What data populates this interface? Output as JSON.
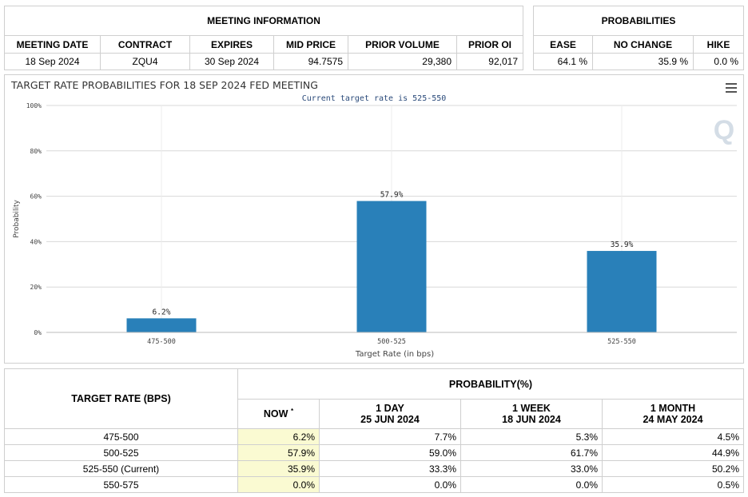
{
  "meeting_info": {
    "title": "MEETING INFORMATION",
    "columns": [
      "MEETING DATE",
      "CONTRACT",
      "EXPIRES",
      "MID PRICE",
      "PRIOR VOLUME",
      "PRIOR OI"
    ],
    "values": [
      "18 Sep 2024",
      "ZQU4",
      "30 Sep 2024",
      "94.7575",
      "29,380",
      "92,017"
    ]
  },
  "probabilities": {
    "title": "PROBABILITIES",
    "columns": [
      "EASE",
      "NO CHANGE",
      "HIKE"
    ],
    "values": [
      "64.1 %",
      "35.9 %",
      "0.0 %"
    ]
  },
  "chart_data": {
    "type": "bar",
    "title": "TARGET RATE PROBABILITIES FOR 18 SEP 2024 FED MEETING",
    "subtitle": "Current target rate is 525-550",
    "xlabel": "Target Rate (in bps)",
    "ylabel": "Probability",
    "categories": [
      "475-500",
      "500-525",
      "525-550"
    ],
    "values": [
      6.2,
      57.9,
      35.9
    ],
    "data_labels": [
      "6.2%",
      "57.9%",
      "35.9%"
    ],
    "ylim": [
      0,
      100
    ],
    "yticks": [
      0,
      20,
      40,
      60,
      80,
      100
    ],
    "ytick_labels": [
      "0%",
      "20%",
      "40%",
      "60%",
      "80%",
      "100%"
    ],
    "grid": true,
    "bar_color": "#2980b9",
    "watermark": "Q"
  },
  "rate_table": {
    "target_header": "TARGET RATE (BPS)",
    "prob_header": "PROBABILITY(%)",
    "col_headers": [
      {
        "line1": "NOW",
        "line2": ""
      },
      {
        "line1": "1 DAY",
        "line2": "25 JUN 2024"
      },
      {
        "line1": "1 WEEK",
        "line2": "18 JUN 2024"
      },
      {
        "line1": "1 MONTH",
        "line2": "24 MAY 2024"
      }
    ],
    "now_marker": "*",
    "rows": [
      {
        "rate": "475-500",
        "now": "6.2%",
        "day": "7.7%",
        "week": "5.3%",
        "month": "4.5%"
      },
      {
        "rate": "500-525",
        "now": "57.9%",
        "day": "59.0%",
        "week": "61.7%",
        "month": "44.9%"
      },
      {
        "rate": "525-550 (Current)",
        "now": "35.9%",
        "day": "33.3%",
        "week": "33.0%",
        "month": "50.2%"
      },
      {
        "rate": "550-575",
        "now": "0.0%",
        "day": "0.0%",
        "week": "0.0%",
        "month": "0.5%"
      }
    ]
  }
}
